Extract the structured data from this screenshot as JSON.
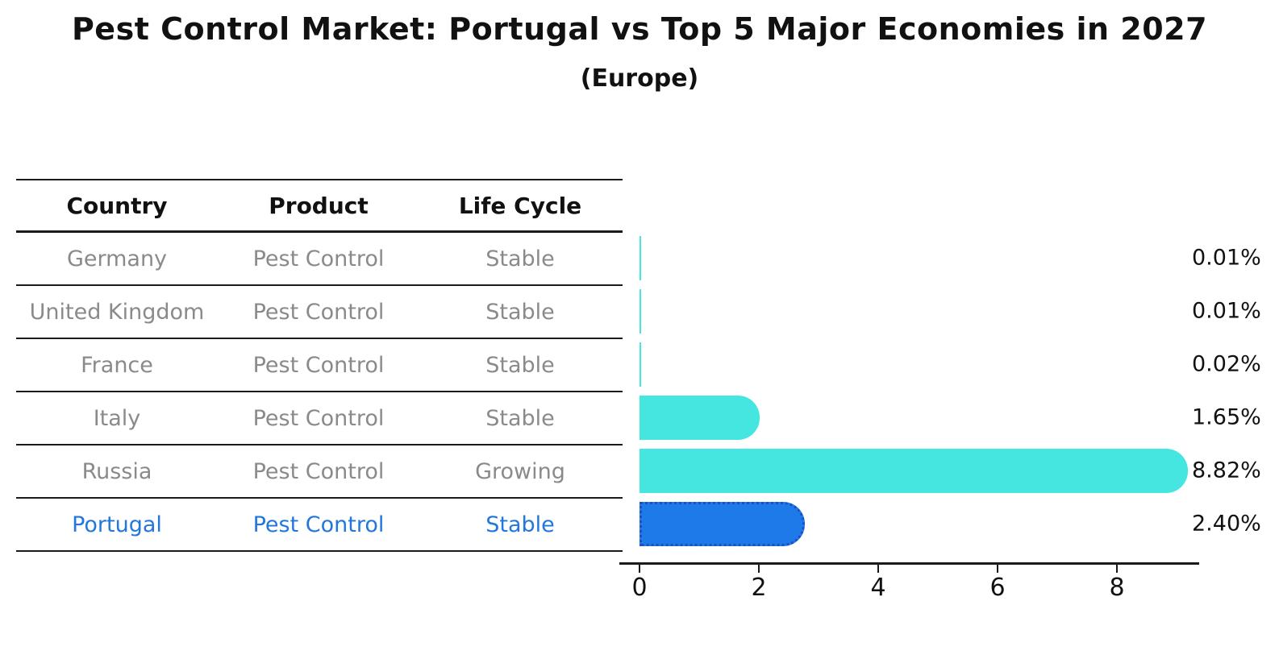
{
  "title": "Pest Control Market: Portugal vs Top 5 Major Economies in 2027",
  "subtitle": "(Europe)",
  "table": {
    "headers": [
      "Country",
      "Product",
      "Life Cycle"
    ],
    "rows": [
      [
        "Germany",
        "Pest Control",
        "Stable"
      ],
      [
        "United Kingdom",
        "Pest Control",
        "Stable"
      ],
      [
        "France",
        "Pest Control",
        "Stable"
      ],
      [
        "Italy",
        "Pest Control",
        "Stable"
      ],
      [
        "Russia",
        "Pest Control",
        "Growing"
      ],
      [
        "Portugal",
        "Pest Control",
        "Stable"
      ]
    ],
    "highlight_row": 5,
    "text_color": "#8a8a8a",
    "highlight_text_color": "#2277DD"
  },
  "chart_data": {
    "type": "bar",
    "orientation": "horizontal",
    "title": "Pest Control Market: Portugal vs Top 5 Major Economies in 2027",
    "subtitle": "(Europe)",
    "categories": [
      "Germany",
      "United Kingdom",
      "France",
      "Italy",
      "Russia",
      "Portugal"
    ],
    "values": [
      0.01,
      0.01,
      0.02,
      1.65,
      8.82,
      2.4
    ],
    "value_labels": [
      "0.01%",
      "0.01%",
      "0.02%",
      "1.65%",
      "8.82%",
      "2.40%"
    ],
    "xlabel": "",
    "ylabel": "",
    "xlim": [
      0,
      9.4
    ],
    "xticks": [
      0,
      2,
      4,
      6,
      8
    ],
    "grid": false,
    "legend": "none",
    "highlight_index": 5,
    "bar_color": "#45E5E0",
    "highlight_bar_color": "#1E7AE8",
    "highlight_border_color": "#1C50C6"
  }
}
